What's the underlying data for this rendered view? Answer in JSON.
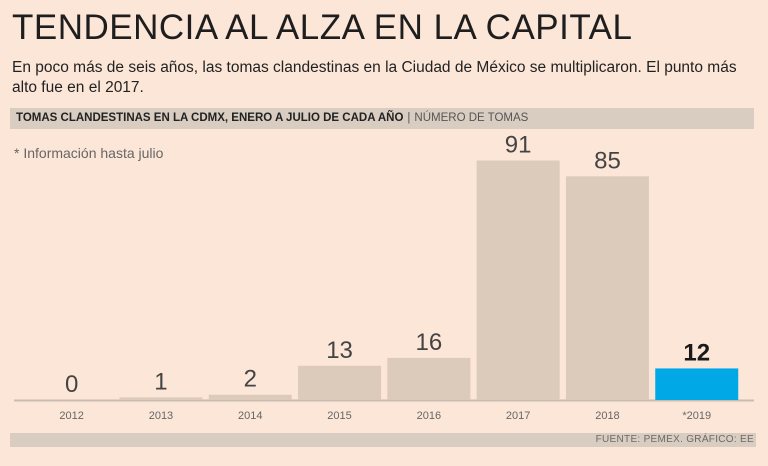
{
  "header": {
    "title": "TENDENCIA AL ALZA EN LA CAPITAL",
    "subtitle": "En poco más de seis años, las tomas clandestinas en la Ciudad de México se multiplicaron. El punto más alto fue en el 2017."
  },
  "chart_header": {
    "label": "TOMAS CLANDESTINAS EN LA CDMX, ENERO A JULIO DE CADA AÑO",
    "separator": "|",
    "unit": "NÚMERO DE TOMAS"
  },
  "note": "* Información hasta julio",
  "source": "FUENTE: PEMEX.  GRÁFICO: EE",
  "colors": {
    "bar": "#dccbbb",
    "highlight": "#00a9e6",
    "axis": "#c9bcb0"
  },
  "chart_data": {
    "type": "bar",
    "title": "TOMAS CLANDESTINAS EN LA CDMX, ENERO A JULIO DE CADA AÑO",
    "ylabel": "NÚMERO DE TOMAS",
    "xlabel": "",
    "categories": [
      "2012",
      "2013",
      "2014",
      "2015",
      "2016",
      "2017",
      "2018",
      "*2019"
    ],
    "values": [
      0,
      1,
      2,
      13,
      16,
      91,
      85,
      12
    ],
    "highlight_index": 7,
    "ylim": [
      0,
      95
    ],
    "grid": false,
    "legend": "none"
  }
}
